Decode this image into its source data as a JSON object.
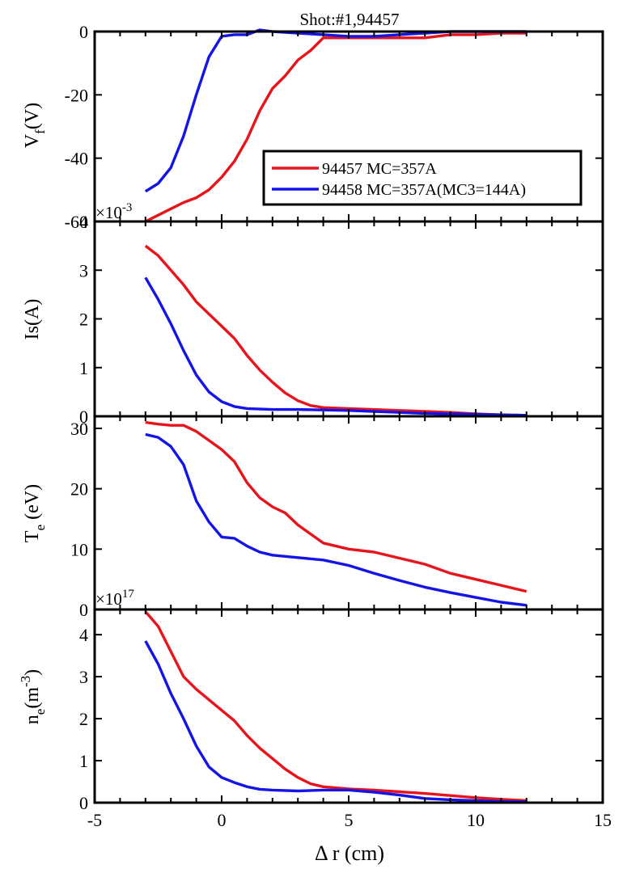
{
  "figure_title": "Shot:#1,94457",
  "x_axis": {
    "label": "Δ r (cm)",
    "lim": [
      -5,
      15
    ],
    "ticks": [
      -5,
      0,
      5,
      10,
      15
    ],
    "tick_labels": [
      "-5",
      "0",
      "5",
      "10",
      "15"
    ]
  },
  "legend": {
    "placement": "inside top panel, right",
    "entries": [
      {
        "label": "94457 MC=357A",
        "color": "#e8141c"
      },
      {
        "label": "94458 MC=357A(MC3=144A)",
        "color": "#1414e6"
      }
    ]
  },
  "colors": {
    "series_1": "#e8141c",
    "series_2": "#1414e6",
    "axes": "#000000"
  },
  "chart_data": [
    {
      "type": "line",
      "panel": "vf",
      "ylabel_main": "V",
      "ylabel_sub": "f",
      "ylabel_tail": "(V)",
      "ylim": [
        -60,
        0
      ],
      "yticks": [
        -60,
        -40,
        -20,
        0
      ],
      "ytick_labels": [
        "-60",
        "-40",
        "-20",
        "0"
      ],
      "series": [
        {
          "name": "94457 MC=357A",
          "x": [
            -3.0,
            -2.5,
            -2.0,
            -1.5,
            -1.0,
            -0.5,
            0.0,
            0.5,
            1.0,
            1.5,
            2.0,
            2.5,
            3.0,
            3.5,
            4.0,
            5.0,
            6.0,
            7.0,
            8.0,
            9.0,
            10.0,
            11.0,
            12.0
          ],
          "y": [
            -60,
            -58,
            -56,
            -54,
            -52.5,
            -50,
            -46,
            -41,
            -34,
            -25,
            -18,
            -14,
            -9,
            -6,
            -2,
            -2,
            -2,
            -2,
            -2,
            -1,
            -1,
            -0.5,
            -0.5
          ]
        },
        {
          "name": "94458 MC=357A(MC3=144A)",
          "x": [
            -3.0,
            -2.5,
            -2.0,
            -1.5,
            -1.0,
            -0.5,
            0.0,
            0.5,
            1.0,
            1.5,
            2.0,
            3.0,
            4.0,
            5.0,
            6.0,
            7.0,
            8.0,
            9.0,
            10.0,
            11.0,
            12.0
          ],
          "y": [
            -50.5,
            -48,
            -43,
            -33,
            -20,
            -8,
            -1.5,
            -1,
            -1,
            0.5,
            0,
            -0.5,
            -1,
            -1.5,
            -1.5,
            -1,
            -0.5,
            0,
            0,
            0,
            0
          ]
        }
      ]
    },
    {
      "type": "line",
      "panel": "is",
      "exponent_label": "×10",
      "exponent_power": "-3",
      "ylabel_main": "Is(A)",
      "ylim": [
        0,
        4
      ],
      "yticks": [
        0,
        1,
        2,
        3,
        4
      ],
      "ytick_labels": [
        "0",
        "1",
        "2",
        "3",
        "4"
      ],
      "series": [
        {
          "name": "94457 MC=357A",
          "x": [
            -3.0,
            -2.5,
            -2.0,
            -1.5,
            -1.0,
            -0.5,
            0.0,
            0.5,
            1.0,
            1.5,
            2.0,
            2.5,
            3.0,
            3.5,
            4.0,
            5.0,
            6.0,
            7.0,
            8.0,
            9.0,
            10.0,
            11.0,
            12.0
          ],
          "y": [
            3.5,
            3.3,
            3.0,
            2.7,
            2.35,
            2.1,
            1.85,
            1.6,
            1.25,
            0.95,
            0.7,
            0.48,
            0.32,
            0.22,
            0.18,
            0.16,
            0.14,
            0.12,
            0.1,
            0.08,
            0.05,
            0.03,
            0.02
          ]
        },
        {
          "name": "94458 MC=357A(MC3=144A)",
          "x": [
            -3.0,
            -2.5,
            -2.0,
            -1.5,
            -1.0,
            -0.5,
            0.0,
            0.5,
            1.0,
            2.0,
            3.0,
            4.0,
            5.0,
            6.0,
            7.0,
            8.0,
            9.0,
            10.0,
            11.0,
            12.0
          ],
          "y": [
            2.85,
            2.4,
            1.9,
            1.35,
            0.85,
            0.5,
            0.3,
            0.2,
            0.16,
            0.14,
            0.14,
            0.13,
            0.12,
            0.1,
            0.08,
            0.06,
            0.05,
            0.04,
            0.03,
            0.02
          ]
        }
      ]
    },
    {
      "type": "line",
      "panel": "te",
      "ylabel_main": "T",
      "ylabel_sub": "e",
      "ylabel_tail": "(eV)",
      "ylim": [
        0,
        32
      ],
      "yticks": [
        0,
        10,
        20,
        30
      ],
      "ytick_labels": [
        "0",
        "10",
        "20",
        "30"
      ],
      "series": [
        {
          "name": "94457 MC=357A",
          "x": [
            -3.0,
            -2.5,
            -2.0,
            -1.5,
            -1.0,
            -0.5,
            0.0,
            0.5,
            1.0,
            1.5,
            2.0,
            2.5,
            3.0,
            3.5,
            4.0,
            5.0,
            6.0,
            7.0,
            8.0,
            9.0,
            10.0,
            11.0,
            12.0
          ],
          "y": [
            31,
            30.7,
            30.5,
            30.5,
            29.5,
            28,
            26.5,
            24.5,
            21,
            18.5,
            17,
            16,
            14,
            12.5,
            11,
            10,
            9.5,
            8.5,
            7.5,
            6,
            5,
            4,
            3
          ]
        },
        {
          "name": "94458 MC=357A(MC3=144A)",
          "x": [
            -3.0,
            -2.5,
            -2.0,
            -1.5,
            -1.0,
            -0.5,
            0.0,
            0.5,
            1.0,
            1.5,
            2.0,
            2.5,
            3.0,
            4.0,
            5.0,
            6.0,
            7.0,
            8.0,
            9.0,
            10.0,
            11.0,
            12.0
          ],
          "y": [
            29,
            28.5,
            27,
            24,
            18,
            14.5,
            12,
            11.8,
            10.5,
            9.5,
            9,
            8.8,
            8.6,
            8.2,
            7.3,
            6,
            4.8,
            3.7,
            2.8,
            2,
            1.2,
            0.7
          ]
        }
      ]
    },
    {
      "type": "line",
      "panel": "ne",
      "exponent_label": "×10",
      "exponent_power": "17",
      "ylabel_main": "n",
      "ylabel_sub": "e",
      "ylabel_unit": "(m",
      "ylabel_power": "-3",
      "ylabel_close": ")",
      "ylim": [
        0,
        4.6
      ],
      "yticks": [
        0,
        1,
        2,
        3,
        4
      ],
      "ytick_labels": [
        "0",
        "1",
        "2",
        "3",
        "4"
      ],
      "series": [
        {
          "name": "94457 MC=357A",
          "x": [
            -3.0,
            -2.5,
            -2.0,
            -1.5,
            -1.0,
            -0.5,
            0.0,
            0.5,
            1.0,
            1.5,
            2.0,
            2.5,
            3.0,
            3.5,
            4.0,
            5.0,
            6.0,
            7.0,
            8.0,
            9.0,
            10.0,
            11.0,
            12.0
          ],
          "y": [
            4.55,
            4.2,
            3.6,
            3.0,
            2.7,
            2.45,
            2.2,
            1.95,
            1.6,
            1.3,
            1.05,
            0.8,
            0.6,
            0.45,
            0.38,
            0.33,
            0.3,
            0.26,
            0.22,
            0.17,
            0.12,
            0.08,
            0.05
          ]
        },
        {
          "name": "94458 MC=357A(MC3=144A)",
          "x": [
            -3.0,
            -2.5,
            -2.0,
            -1.5,
            -1.0,
            -0.5,
            0.0,
            0.5,
            1.0,
            1.5,
            2.0,
            3.0,
            4.0,
            5.0,
            6.0,
            7.0,
            8.0,
            9.0,
            10.0,
            11.0,
            12.0
          ],
          "y": [
            3.85,
            3.3,
            2.6,
            2.0,
            1.35,
            0.85,
            0.6,
            0.48,
            0.38,
            0.32,
            0.3,
            0.28,
            0.3,
            0.3,
            0.25,
            0.18,
            0.1,
            0.07,
            0.05,
            0.03,
            0.02
          ]
        }
      ]
    }
  ]
}
